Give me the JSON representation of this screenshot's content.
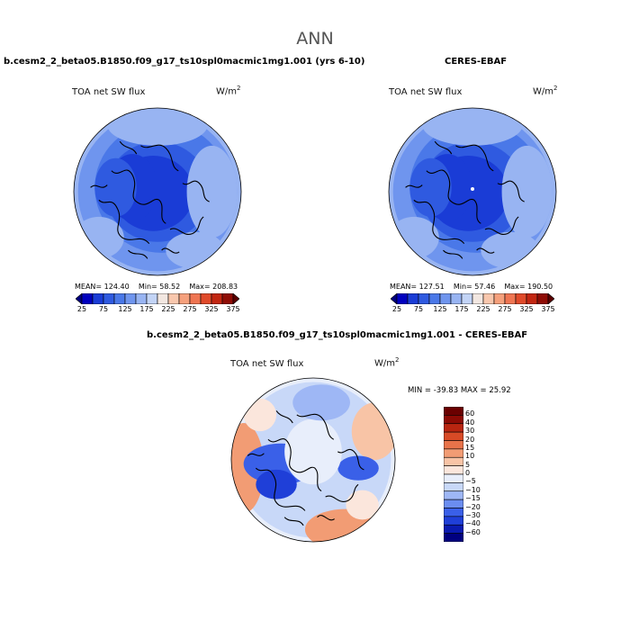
{
  "figure": {
    "title": "ANN"
  },
  "panels": [
    {
      "title": "b.cesm2_2_beta05.B1850.f09_g17_ts10spl0macmic1mg1.001 (yrs 6-10)",
      "variable": "TOA net SW flux",
      "units_base": "W/m",
      "units_exp": "2",
      "mean": "MEAN= 124.40",
      "min": "Min= 58.52",
      "max": "Max= 208.83"
    },
    {
      "title": "CERES-EBAF",
      "variable": "TOA net SW flux",
      "units_base": "W/m",
      "units_exp": "2",
      "mean": "MEAN= 127.51",
      "min": "Min= 57.46",
      "max": "Max= 190.50"
    },
    {
      "title": "b.cesm2_2_beta05.B1850.f09_g17_ts10spl0macmic1mg1.001 - CERES-EBAF",
      "variable": "TOA net SW flux",
      "units_base": "W/m",
      "units_exp": "2",
      "minmax": "MIN = -39.83 MAX =  25.92"
    }
  ],
  "chart_data": [
    {
      "type": "heatmap",
      "projection": "north polar stereographic",
      "title": "b.cesm2_2_beta05.B1850.f09_g17_ts10spl0macmic1mg1.001 (yrs 6-10)",
      "variable": "TOA net SW flux",
      "units": "W/m^2",
      "mean": 124.4,
      "min": 58.52,
      "max": 208.83,
      "colorbar": {
        "levels": [
          25,
          50,
          75,
          100,
          125,
          150,
          175,
          200,
          225,
          250,
          275,
          300,
          325,
          350,
          375
        ],
        "tick_labels": [
          "25",
          "75",
          "125",
          "175",
          "225",
          "275",
          "325",
          "375"
        ],
        "colors": [
          "#00007f",
          "#0000bf",
          "#1a3cd6",
          "#2f5ae0",
          "#4a78e8",
          "#6f95ee",
          "#98b4f2",
          "#c3d4f6",
          "#f2e7e1",
          "#f8c7ad",
          "#f5a07c",
          "#ef7552",
          "#e04a2a",
          "#c22611",
          "#8f0c05",
          "#5a0000"
        ]
      }
    },
    {
      "type": "heatmap",
      "projection": "north polar stereographic",
      "title": "CERES-EBAF",
      "variable": "TOA net SW flux",
      "units": "W/m^2",
      "mean": 127.51,
      "min": 57.46,
      "max": 190.5,
      "colorbar": {
        "levels": [
          25,
          50,
          75,
          100,
          125,
          150,
          175,
          200,
          225,
          250,
          275,
          300,
          325,
          350,
          375
        ],
        "tick_labels": [
          "25",
          "75",
          "125",
          "175",
          "225",
          "275",
          "325",
          "375"
        ],
        "colors": [
          "#00007f",
          "#0000bf",
          "#1a3cd6",
          "#2f5ae0",
          "#4a78e8",
          "#6f95ee",
          "#98b4f2",
          "#c3d4f6",
          "#f2e7e1",
          "#f8c7ad",
          "#f5a07c",
          "#ef7552",
          "#e04a2a",
          "#c22611",
          "#8f0c05",
          "#5a0000"
        ]
      }
    },
    {
      "type": "heatmap",
      "projection": "north polar stereographic",
      "title": "b.cesm2_2_beta05.B1850.f09_g17_ts10spl0macmic1mg1.001 - CERES-EBAF",
      "variable": "TOA net SW flux",
      "units": "W/m^2",
      "min": -39.83,
      "max": 25.92,
      "colorbar": {
        "orientation": "vertical",
        "levels": [
          -60,
          -40,
          -30,
          -20,
          -15,
          -10,
          -5,
          0,
          5,
          10,
          15,
          20,
          30,
          40,
          60
        ],
        "tick_labels": [
          "60",
          "40",
          "30",
          "20",
          "15",
          "10",
          "5",
          "0",
          "−5",
          "−10",
          "−15",
          "−20",
          "−30",
          "−40",
          "−60"
        ],
        "colors": [
          "#000080",
          "#0a1ab0",
          "#1f3fd8",
          "#3a60e8",
          "#6b8df0",
          "#9eb7f5",
          "#c8d8f8",
          "#e8eefb",
          "#fbe6dc",
          "#f8c4a6",
          "#f29c74",
          "#e8734a",
          "#d84a26",
          "#b82510",
          "#8c0a04",
          "#6a0000"
        ]
      }
    }
  ]
}
